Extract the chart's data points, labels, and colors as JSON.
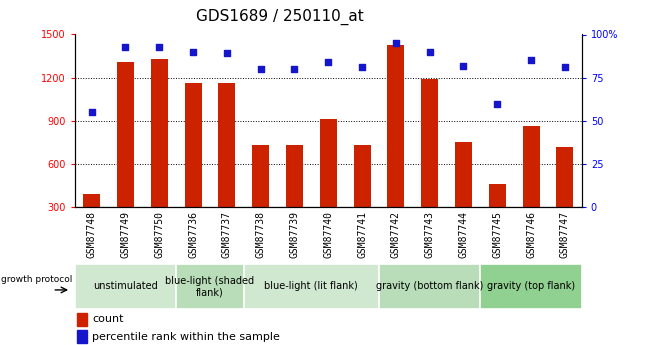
{
  "title": "GDS1689 / 250110_at",
  "samples": [
    "GSM87748",
    "GSM87749",
    "GSM87750",
    "GSM87736",
    "GSM87737",
    "GSM87738",
    "GSM87739",
    "GSM87740",
    "GSM87741",
    "GSM87742",
    "GSM87743",
    "GSM87744",
    "GSM87745",
    "GSM87746",
    "GSM87747"
  ],
  "counts": [
    390,
    1310,
    1330,
    1160,
    1165,
    730,
    730,
    910,
    730,
    1430,
    1190,
    750,
    460,
    860,
    720
  ],
  "percentiles": [
    55,
    93,
    93,
    90,
    89,
    80,
    80,
    84,
    81,
    95,
    90,
    82,
    60,
    85,
    81
  ],
  "ylim_left": [
    300,
    1500
  ],
  "ylim_right": [
    0,
    100
  ],
  "yticks_left": [
    300,
    600,
    900,
    1200,
    1500
  ],
  "yticks_right": [
    0,
    25,
    50,
    75,
    100
  ],
  "ytick_labels_right": [
    "0",
    "25",
    "50",
    "75",
    "100%"
  ],
  "groups": [
    {
      "label": "unstimulated",
      "indices": [
        0,
        1,
        2
      ],
      "color": "#d0e8d0"
    },
    {
      "label": "blue-light (shaded\nflank)",
      "indices": [
        3,
        4
      ],
      "color": "#b8ddb8"
    },
    {
      "label": "blue-light (lit flank)",
      "indices": [
        5,
        6,
        7,
        8
      ],
      "color": "#d0e8d0"
    },
    {
      "label": "gravity (bottom flank)",
      "indices": [
        9,
        10,
        11
      ],
      "color": "#b8ddb8"
    },
    {
      "label": "gravity (top flank)",
      "indices": [
        12,
        13,
        14
      ],
      "color": "#90d090"
    }
  ],
  "bar_color": "#cc2200",
  "dot_color": "#1515cc",
  "xlabel": "growth protocol",
  "legend_items": [
    "count",
    "percentile rank within the sample"
  ],
  "bar_width": 0.5,
  "group_label_fontsize": 7,
  "tick_fontsize": 7,
  "title_fontsize": 11,
  "xticklabel_fontsize": 7,
  "sample_bg_color": "#cccccc"
}
